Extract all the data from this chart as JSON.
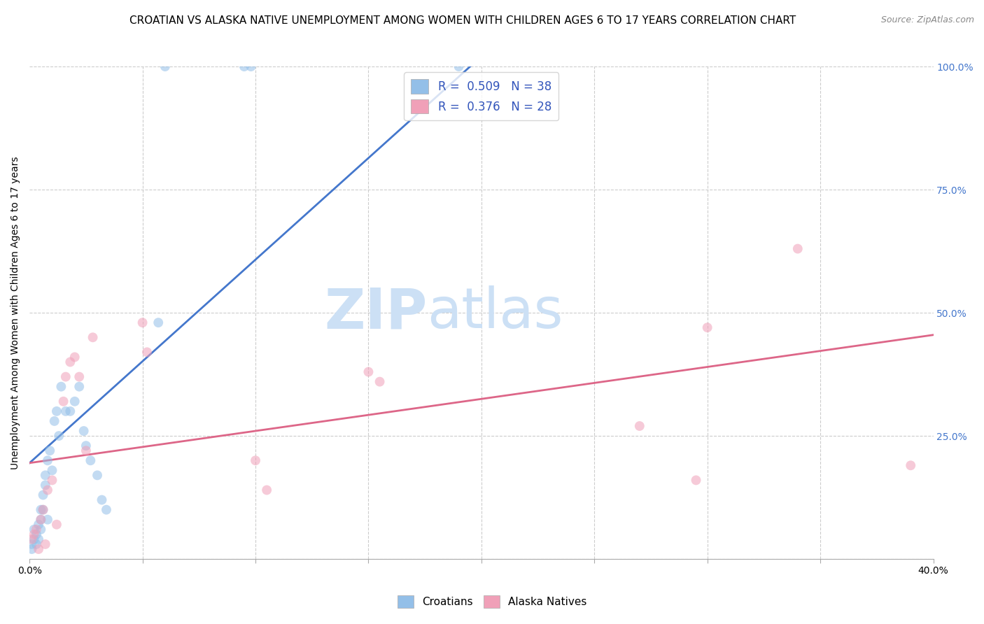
{
  "title": "CROATIAN VS ALASKA NATIVE UNEMPLOYMENT AMONG WOMEN WITH CHILDREN AGES 6 TO 17 YEARS CORRELATION CHART",
  "source": "Source: ZipAtlas.com",
  "ylabel": "Unemployment Among Women with Children Ages 6 to 17 years",
  "xlim": [
    0.0,
    0.4
  ],
  "ylim": [
    0.0,
    1.0
  ],
  "background_color": "#ffffff",
  "watermark_zip": "ZIP",
  "watermark_atlas": "atlas",
  "watermark_color_zip": "#cce0f5",
  "watermark_color_atlas": "#cce0f5",
  "croatian_color": "#93bfe8",
  "alaska_color": "#f0a0b8",
  "croatian_line_color": "#4477cc",
  "alaska_line_color": "#dd6688",
  "legend_text_color": "#3355bb",
  "blue_line_x": [
    0.0,
    0.195
  ],
  "blue_line_y": [
    0.195,
    1.0
  ],
  "pink_line_x": [
    0.0,
    0.4
  ],
  "pink_line_y": [
    0.195,
    0.455
  ],
  "croatian_scatter_x": [
    0.001,
    0.001,
    0.002,
    0.002,
    0.003,
    0.003,
    0.004,
    0.004,
    0.005,
    0.005,
    0.005,
    0.006,
    0.006,
    0.007,
    0.007,
    0.008,
    0.008,
    0.009,
    0.01,
    0.011,
    0.012,
    0.013,
    0.014,
    0.016,
    0.018,
    0.02,
    0.022,
    0.024,
    0.025,
    0.027,
    0.03,
    0.032,
    0.034,
    0.057,
    0.06,
    0.095,
    0.098,
    0.19
  ],
  "croatian_scatter_y": [
    0.02,
    0.03,
    0.04,
    0.06,
    0.05,
    0.03,
    0.07,
    0.04,
    0.06,
    0.08,
    0.1,
    0.1,
    0.13,
    0.15,
    0.17,
    0.08,
    0.2,
    0.22,
    0.18,
    0.28,
    0.3,
    0.25,
    0.35,
    0.3,
    0.3,
    0.32,
    0.35,
    0.26,
    0.23,
    0.2,
    0.17,
    0.12,
    0.1,
    0.48,
    1.0,
    1.0,
    1.0,
    1.0
  ],
  "alaska_scatter_x": [
    0.001,
    0.002,
    0.003,
    0.004,
    0.005,
    0.006,
    0.007,
    0.008,
    0.01,
    0.012,
    0.015,
    0.016,
    0.018,
    0.02,
    0.022,
    0.025,
    0.028,
    0.05,
    0.052,
    0.1,
    0.105,
    0.15,
    0.155,
    0.27,
    0.295,
    0.3,
    0.34,
    0.39
  ],
  "alaska_scatter_y": [
    0.04,
    0.05,
    0.06,
    0.02,
    0.08,
    0.1,
    0.03,
    0.14,
    0.16,
    0.07,
    0.32,
    0.37,
    0.4,
    0.41,
    0.37,
    0.22,
    0.45,
    0.48,
    0.42,
    0.2,
    0.14,
    0.38,
    0.36,
    0.27,
    0.16,
    0.47,
    0.63,
    0.19
  ],
  "grid_color": "#cccccc",
  "grid_style": "--",
  "marker_size": 100,
  "marker_alpha": 0.55,
  "title_fontsize": 11,
  "axis_label_fontsize": 10,
  "tick_fontsize": 10,
  "legend_fontsize": 12,
  "source_fontsize": 9
}
